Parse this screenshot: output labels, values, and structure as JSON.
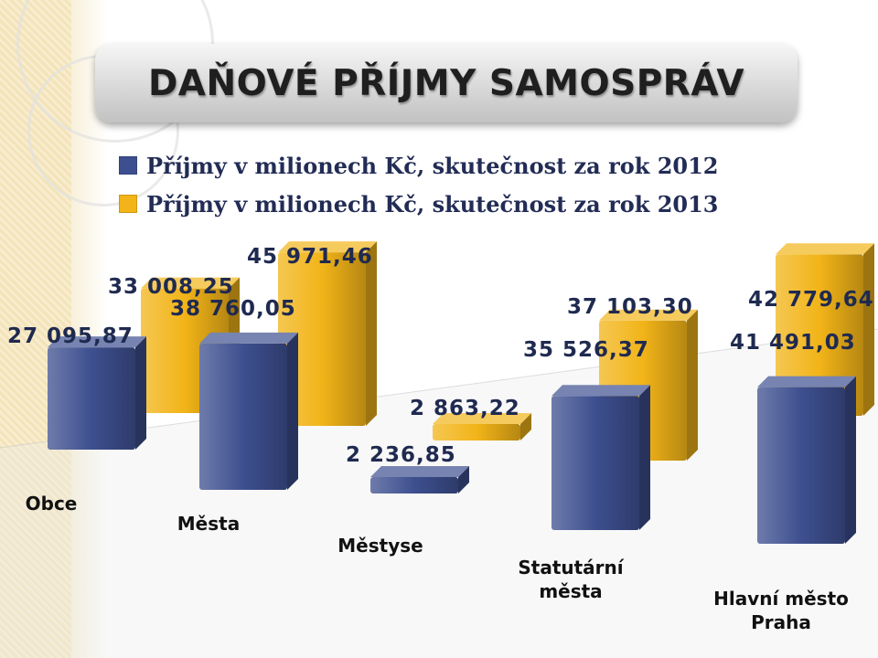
{
  "title": "DAŇOVÉ PŘÍJMY SAMOSPRÁV",
  "legend": {
    "series_2012": "Příjmy v milionech Kč, skutečnost za rok 2012",
    "series_2013": "Příjmy v milionech Kč, skutečnost za rok 2013"
  },
  "colors": {
    "series_2012": "#3d4f8f",
    "series_2013": "#f2b418"
  },
  "chart_data": {
    "type": "bar",
    "categories": [
      "Obce",
      "Města",
      "Městyse",
      "Statutární města",
      "Hlavní město Praha"
    ],
    "series": [
      {
        "name": "Příjmy v milionech Kč, skutečnost za rok 2012",
        "values": [
          27095.87,
          38760.05,
          2236.85,
          35526.37,
          41491.03
        ],
        "labels": [
          "27 095,87",
          "38 760,05",
          "2 236,85",
          "35 526,37",
          "41 491,03"
        ]
      },
      {
        "name": "Příjmy v milionech Kč, skutečnost za rok 2013",
        "values": [
          33008.25,
          45971.46,
          2863.22,
          37103.3,
          42779.64
        ],
        "labels": [
          "33 008,25",
          "45 971,46",
          "2 863,22",
          "37 103,30",
          "42 779,64"
        ]
      }
    ],
    "title": "DAŇOVÉ PŘÍJMY SAMOSPRÁV",
    "legend_position": "top-left",
    "grid": false
  }
}
